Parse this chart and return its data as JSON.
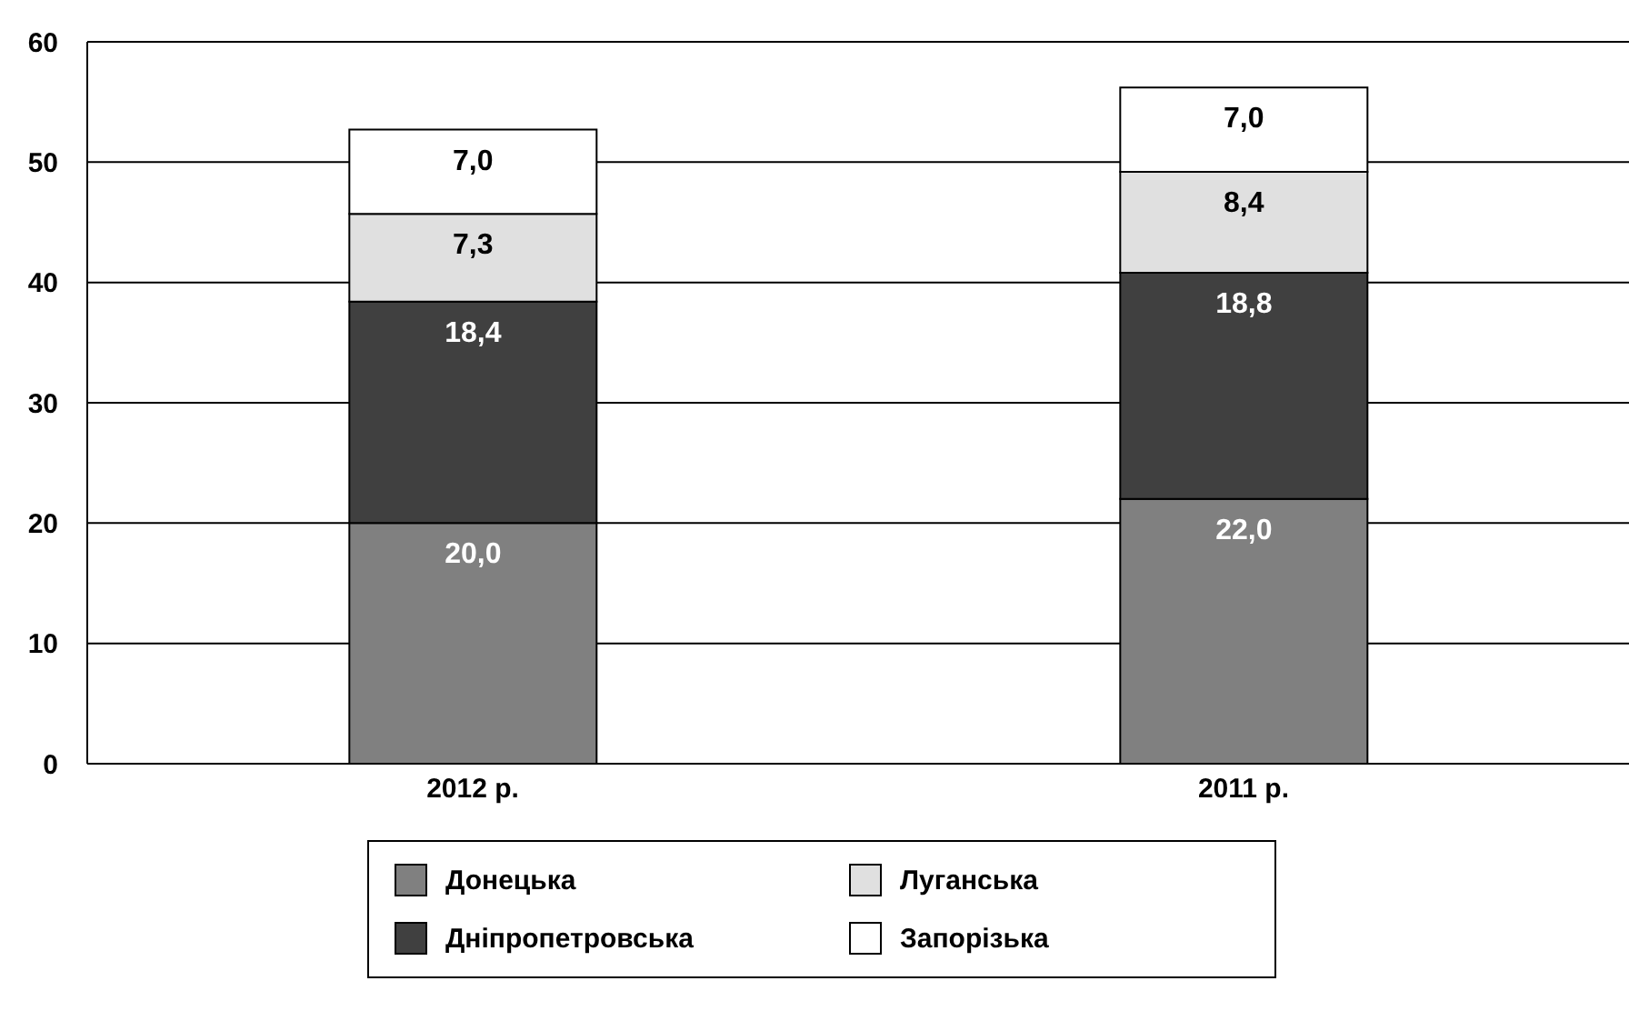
{
  "chart_data": {
    "type": "bar",
    "stacked": true,
    "categories": [
      "2012 р.",
      "2011 р."
    ],
    "series": [
      {
        "name": "Донецька",
        "color": "#808080",
        "values": [
          20.0,
          22.0
        ],
        "value_labels": [
          "20,0",
          "22,0"
        ]
      },
      {
        "name": "Дніпропетровська",
        "color": "#404040",
        "values": [
          18.4,
          18.8
        ],
        "value_labels": [
          "18,4",
          "18,8"
        ]
      },
      {
        "name": "Луганська",
        "color": "#e0e0e0",
        "values": [
          7.3,
          8.4
        ],
        "value_labels": [
          "7,3",
          "8,4"
        ]
      },
      {
        "name": "Запорізька",
        "color": "#ffffff",
        "values": [
          7.0,
          7.0
        ],
        "value_labels": [
          "7,0",
          "7,0"
        ]
      }
    ],
    "ylim": [
      0,
      60
    ],
    "yticks": [
      0,
      10,
      20,
      30,
      40,
      50,
      60
    ],
    "grid": "y",
    "legend": "bottom"
  }
}
